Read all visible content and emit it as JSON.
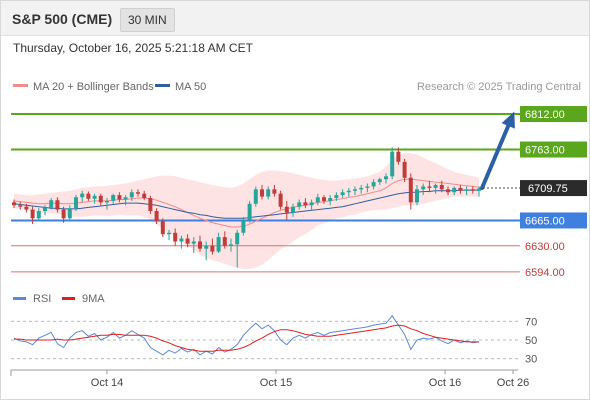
{
  "header": {
    "title": "S&P 500 (CME)",
    "timeframe": "30 MIN"
  },
  "datetime": "Thursday, October 16, 2025 5:21:18 AM CET",
  "legend": {
    "ma20": "MA 20 + Bollinger Bands",
    "ma50": "MA 50",
    "credit": "Research © 2025 Trading Central"
  },
  "rsi_legend": {
    "rsi": "RSI",
    "ma9": "9MA"
  },
  "colors": {
    "up": "#26a69a",
    "down": "#c23b3b",
    "resistance": "#5aa61c",
    "support": "#3f7fe0",
    "target_line": "#e36f6f",
    "arrow": "#2d5fa6",
    "ma20": "#f28b8b",
    "ma50": "#2f5ea3",
    "band": "#fcdcdc",
    "rsi": "#5b8ad8",
    "rsi_ma": "#e02020"
  },
  "chart_data": [
    {
      "type": "candlestick",
      "ylim": [
        6580,
        6830
      ],
      "x_ticks": [
        "Oct 14",
        "Oct 15",
        "Oct 16",
        "Oct 26"
      ],
      "current_price": "6709.75",
      "levels": [
        {
          "label": "6812.00",
          "value": 6812,
          "kind": "resistance"
        },
        {
          "label": "6763.00",
          "value": 6763,
          "kind": "resistance"
        },
        {
          "label": "6665.00",
          "value": 6665,
          "kind": "support"
        },
        {
          "label": "6630.00",
          "value": 6630,
          "kind": "target"
        },
        {
          "label": "6594.00",
          "value": 6594,
          "kind": "target"
        }
      ],
      "ohlc": [
        [
          6690,
          6694,
          6682,
          6686
        ],
        [
          6686,
          6691,
          6680,
          6684
        ],
        [
          6684,
          6688,
          6676,
          6680
        ],
        [
          6680,
          6684,
          6660,
          6668
        ],
        [
          6668,
          6682,
          6664,
          6678
        ],
        [
          6678,
          6686,
          6672,
          6683
        ],
        [
          6683,
          6696,
          6680,
          6693
        ],
        [
          6693,
          6697,
          6676,
          6680
        ],
        [
          6680,
          6684,
          6662,
          6668
        ],
        [
          6668,
          6686,
          6664,
          6682
        ],
        [
          6682,
          6700,
          6678,
          6697
        ],
        [
          6697,
          6706,
          6690,
          6702
        ],
        [
          6702,
          6705,
          6692,
          6695
        ],
        [
          6695,
          6702,
          6688,
          6699
        ],
        [
          6699,
          6702,
          6686,
          6690
        ],
        [
          6690,
          6696,
          6680,
          6692
        ],
        [
          6692,
          6702,
          6688,
          6700
        ],
        [
          6700,
          6704,
          6690,
          6694
        ],
        [
          6694,
          6700,
          6686,
          6697
        ],
        [
          6697,
          6708,
          6692,
          6704
        ],
        [
          6704,
          6708,
          6698,
          6702
        ],
        [
          6702,
          6706,
          6693,
          6696
        ],
        [
          6696,
          6699,
          6674,
          6678
        ],
        [
          6678,
          6682,
          6660,
          6664
        ],
        [
          6664,
          6668,
          6642,
          6646
        ],
        [
          6646,
          6652,
          6638,
          6648
        ],
        [
          6648,
          6654,
          6630,
          6636
        ],
        [
          6636,
          6644,
          6626,
          6640
        ],
        [
          6640,
          6646,
          6628,
          6633
        ],
        [
          6633,
          6642,
          6620,
          6636
        ],
        [
          6636,
          6644,
          6622,
          6626
        ],
        [
          6626,
          6636,
          6610,
          6630
        ],
        [
          6630,
          6640,
          6618,
          6622
        ],
        [
          6622,
          6648,
          6620,
          6642
        ],
        [
          6642,
          6650,
          6626,
          6630
        ],
        [
          6630,
          6640,
          6622,
          6632
        ],
        [
          6632,
          6652,
          6600,
          6648
        ],
        [
          6648,
          6670,
          6644,
          6666
        ],
        [
          6666,
          6692,
          6662,
          6688
        ],
        [
          6688,
          6712,
          6684,
          6708
        ],
        [
          6708,
          6714,
          6694,
          6698
        ],
        [
          6698,
          6712,
          6694,
          6708
        ],
        [
          6708,
          6714,
          6698,
          6702
        ],
        [
          6702,
          6706,
          6680,
          6684
        ],
        [
          6684,
          6692,
          6666,
          6676
        ],
        [
          6676,
          6688,
          6670,
          6684
        ],
        [
          6684,
          6694,
          6680,
          6690
        ],
        [
          6690,
          6696,
          6682,
          6686
        ],
        [
          6686,
          6694,
          6680,
          6690
        ],
        [
          6690,
          6702,
          6686,
          6697
        ],
        [
          6697,
          6700,
          6688,
          6692
        ],
        [
          6692,
          6700,
          6686,
          6696
        ],
        [
          6696,
          6704,
          6692,
          6700
        ],
        [
          6700,
          6708,
          6696,
          6704
        ],
        [
          6704,
          6710,
          6698,
          6706
        ],
        [
          6706,
          6712,
          6700,
          6708
        ],
        [
          6708,
          6714,
          6702,
          6710
        ],
        [
          6710,
          6716,
          6704,
          6712
        ],
        [
          6712,
          6722,
          6708,
          6718
        ],
        [
          6718,
          6724,
          6714,
          6722
        ],
        [
          6722,
          6730,
          6716,
          6726
        ],
        [
          6726,
          6766,
          6722,
          6760
        ],
        [
          6760,
          6766,
          6742,
          6746
        ],
        [
          6746,
          6750,
          6718,
          6724
        ],
        [
          6724,
          6730,
          6680,
          6690
        ],
        [
          6690,
          6714,
          6686,
          6708
        ],
        [
          6708,
          6716,
          6700,
          6712
        ],
        [
          6712,
          6720,
          6704,
          6710
        ],
        [
          6710,
          6716,
          6702,
          6714
        ],
        [
          6714,
          6720,
          6704,
          6708
        ],
        [
          6708,
          6712,
          6700,
          6704
        ],
        [
          6704,
          6712,
          6700,
          6710
        ],
        [
          6710,
          6714,
          6702,
          6706
        ],
        [
          6706,
          6712,
          6700,
          6708
        ],
        [
          6708,
          6712,
          6702,
          6706
        ],
        [
          6706,
          6712,
          6698,
          6709
        ]
      ],
      "ma20": [
        6692,
        6691,
        6690,
        6689,
        6688,
        6688,
        6689,
        6689,
        6688,
        6688,
        6689,
        6690,
        6691,
        6692,
        6692,
        6692,
        6693,
        6694,
        6694,
        6695,
        6696,
        6696,
        6695,
        6693,
        6690,
        6687,
        6684,
        6680,
        6676,
        6672,
        6668,
        6665,
        6662,
        6660,
        6658,
        6656,
        6656,
        6657,
        6660,
        6664,
        6668,
        6672,
        6676,
        6679,
        6681,
        6683,
        6685,
        6686,
        6688,
        6690,
        6691,
        6692,
        6694,
        6695,
        6697,
        6698,
        6700,
        6702,
        6704,
        6706,
        6710,
        6716,
        6720,
        6722,
        6722,
        6721,
        6720,
        6719,
        6718,
        6717,
        6716,
        6715,
        6714,
        6713,
        6712,
        6711
      ],
      "ma50": [
        6688,
        6687,
        6686,
        6685,
        6684,
        6683,
        6682,
        6682,
        6681,
        6681,
        6681,
        6682,
        6683,
        6684,
        6685,
        6686,
        6687,
        6688,
        6689,
        6689,
        6689,
        6688,
        6687,
        6686,
        6684,
        6682,
        6680,
        6678,
        6676,
        6675,
        6673,
        6672,
        6670,
        6669,
        6668,
        6668,
        6668,
        6668,
        6669,
        6670,
        6671,
        6672,
        6673,
        6674,
        6675,
        6676,
        6677,
        6678,
        6679,
        6680,
        6681,
        6682,
        6683,
        6684,
        6686,
        6688,
        6690,
        6692,
        6694,
        6696,
        6698,
        6700,
        6702,
        6703,
        6704,
        6704,
        6705,
        6705,
        6706,
        6706,
        6706,
        6706,
        6707,
        6707,
        6707,
        6707
      ],
      "bb_upper": [
        6702,
        6701,
        6700,
        6700,
        6701,
        6702,
        6703,
        6704,
        6705,
        6706,
        6708,
        6710,
        6711,
        6712,
        6712,
        6713,
        6714,
        6715,
        6716,
        6718,
        6720,
        6722,
        6724,
        6726,
        6727,
        6727,
        6726,
        6724,
        6722,
        6720,
        6718,
        6716,
        6714,
        6712,
        6711,
        6710,
        6712,
        6716,
        6722,
        6728,
        6732,
        6734,
        6734,
        6733,
        6732,
        6730,
        6728,
        6726,
        6724,
        6722,
        6721,
        6720,
        6720,
        6721,
        6722,
        6723,
        6724,
        6726,
        6729,
        6732,
        6740,
        6750,
        6756,
        6758,
        6758,
        6756,
        6752,
        6748,
        6744,
        6740,
        6736,
        6732,
        6730,
        6728,
        6726,
        6724
      ],
      "bb_lower": [
        6682,
        6681,
        6680,
        6678,
        6675,
        6674,
        6675,
        6674,
        6671,
        6670,
        6670,
        6670,
        6671,
        6672,
        6672,
        6671,
        6672,
        6673,
        6672,
        6672,
        6672,
        6670,
        6666,
        6660,
        6653,
        6647,
        6642,
        6636,
        6630,
        6624,
        6618,
        6614,
        6610,
        6608,
        6605,
        6602,
        6600,
        6598,
        6598,
        6600,
        6604,
        6610,
        6618,
        6625,
        6630,
        6636,
        6642,
        6646,
        6652,
        6658,
        6661,
        6664,
        6668,
        6669,
        6672,
        6673,
        6676,
        6678,
        6679,
        6680,
        6680,
        6682,
        6684,
        6686,
        6686,
        6686,
        6688,
        6690,
        6692,
        6694,
        6696,
        6698,
        6698,
        6698,
        6698,
        6698
      ],
      "target_arrow": {
        "from_value": 6709.75,
        "to_value": 6812
      }
    },
    {
      "type": "line",
      "name": "RSI",
      "ylim": [
        20,
        80
      ],
      "y_ticks": [
        70,
        50,
        30
      ],
      "rsi": [
        52,
        49,
        48,
        45,
        52,
        55,
        58,
        46,
        42,
        52,
        58,
        60,
        54,
        57,
        50,
        53,
        58,
        52,
        55,
        60,
        56,
        52,
        42,
        38,
        34,
        39,
        36,
        41,
        37,
        40,
        34,
        38,
        35,
        42,
        37,
        40,
        45,
        55,
        62,
        68,
        62,
        66,
        60,
        50,
        45,
        52,
        55,
        52,
        56,
        58,
        55,
        58,
        59,
        60,
        61,
        62,
        63,
        64,
        66,
        67,
        68,
        76,
        66,
        56,
        40,
        50,
        52,
        51,
        53,
        49,
        46,
        50,
        47,
        49,
        47,
        48
      ],
      "ma9": [
        51,
        51,
        50,
        50,
        50,
        50,
        50,
        51,
        50,
        50,
        51,
        52,
        53,
        54,
        55,
        55,
        56,
        56,
        55,
        55,
        55,
        55,
        54,
        52,
        49,
        47,
        44,
        42,
        40,
        39,
        38,
        38,
        38,
        39,
        39,
        39,
        40,
        42,
        45,
        49,
        52,
        56,
        59,
        61,
        61,
        60,
        58,
        56,
        55,
        54,
        54,
        54,
        55,
        56,
        57,
        58,
        59,
        60,
        61,
        62,
        63,
        65,
        66,
        65,
        62,
        60,
        57,
        55,
        53,
        52,
        51,
        50,
        49,
        48,
        48,
        48
      ]
    }
  ]
}
